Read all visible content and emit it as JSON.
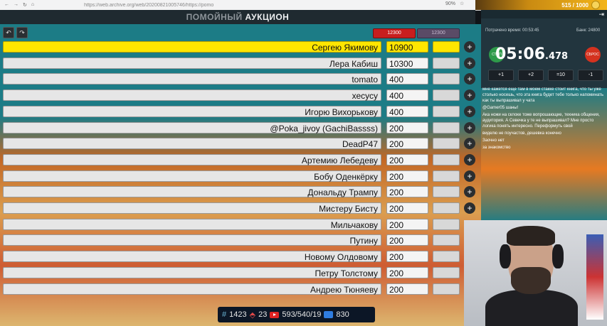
{
  "browser": {
    "url": "https://web.archive.org/web/20200821005746/https://pomo",
    "zoom": "90%"
  },
  "banner": {
    "counter": "515 / 1000"
  },
  "app": {
    "title_part1": "ПОМОЙНЫЙ",
    "title_part2": "АУКЦИОН",
    "chip_red": "12300",
    "chip_purple": "12300"
  },
  "lots": [
    {
      "name": "Сергею Якимову",
      "amount": "10900"
    },
    {
      "name": "Лера Кабиш",
      "amount": "10300"
    },
    {
      "name": "tomato",
      "amount": "400"
    },
    {
      "name": "хесусу",
      "amount": "400"
    },
    {
      "name": "Игорю Вихорькову",
      "amount": "400"
    },
    {
      "name": "@Poka_jivoy (GachiBassss)",
      "amount": "200"
    },
    {
      "name": "DeadP47",
      "amount": "200"
    },
    {
      "name": "Артемию Лебедеву",
      "amount": "200"
    },
    {
      "name": "Бобу Оденкёрку",
      "amount": "200"
    },
    {
      "name": "Дональду Трампу",
      "amount": "200"
    },
    {
      "name": "Мистеру Бисту",
      "amount": "200"
    },
    {
      "name": "Мильчакову",
      "amount": "200"
    },
    {
      "name": "Путину",
      "amount": "200"
    },
    {
      "name": "Новому Олдовому",
      "amount": "200"
    },
    {
      "name": "Петру Толстому",
      "amount": "200"
    },
    {
      "name": "Андрею Тюняеву",
      "amount": "200"
    }
  ],
  "timer": {
    "header_left": "Потрачено время: 00:53:45",
    "header_right": "Банк: 24800",
    "main": "05:06",
    "ms": ".478",
    "stop_label": "СТОП",
    "reset_label": "СБРОС",
    "adjust": [
      "+1",
      "+2",
      "=10",
      "-1"
    ]
  },
  "chat": [
    {
      "nick": "",
      "text": "мне кажется еще там в моем стакке стоит книга, что ты уже столько носешь, что эта книга будет тебе только напоминать как ты выпрашивал у чата"
    },
    {
      "nick": "",
      "text": "@Gamer05 шаны!"
    },
    {
      "nick": "",
      "text": "Ака ножи на склоке тоже вопрошающие, техника общения, аудитория. А Севечка у те не выпрашивал? Мне просто логика понять интересно. Переформуть свой"
    },
    {
      "nick": "",
      "text": "виделю не поучастов, дешевка конечно"
    },
    {
      "nick": "",
      "text": "Заочно нет"
    },
    {
      "nick": "",
      "text": "за знакомство"
    }
  ],
  "status": {
    "viewers": "1423",
    "likes": "23",
    "youtube": "593/540/19",
    "chat_count": "830"
  },
  "colors": {
    "auction_bg": "#1c7c86",
    "leader_highlight": "#ffe600",
    "title_bar": "#1f2a30"
  }
}
